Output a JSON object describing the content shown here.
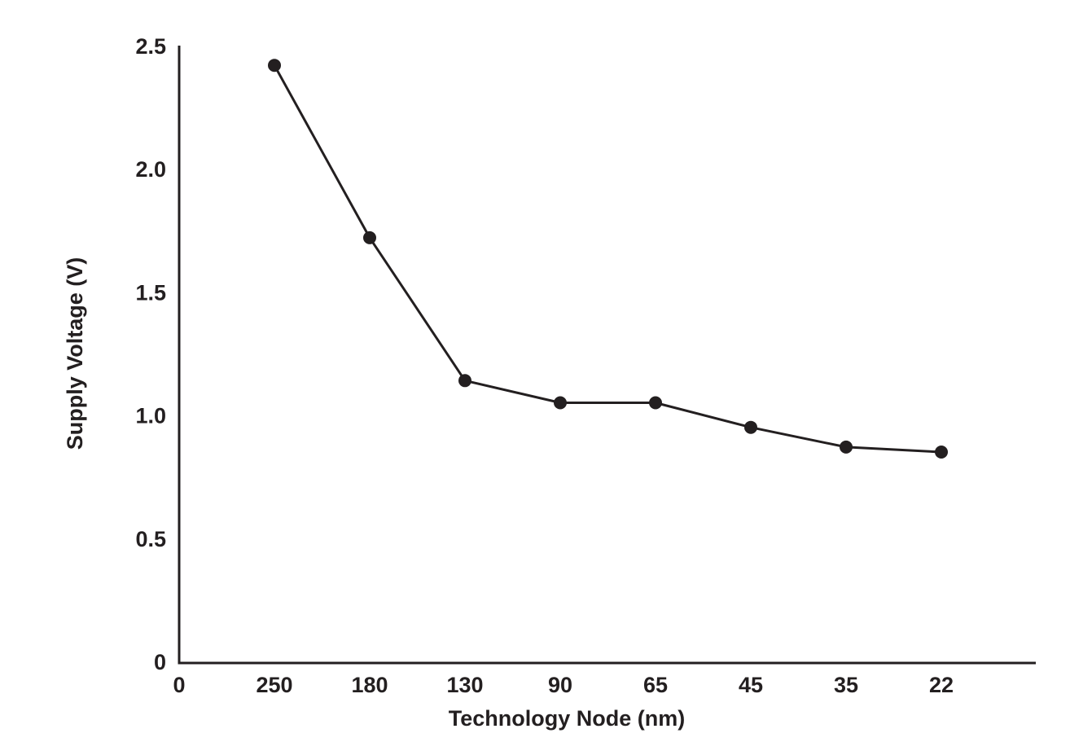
{
  "chart_data": {
    "type": "line",
    "title": "",
    "xlabel": "Technology Node (nm)",
    "ylabel": "Supply Voltage (V)",
    "x_tick_labels": [
      "0",
      "250",
      "180",
      "130",
      "90",
      "65",
      "45",
      "35",
      "22"
    ],
    "y_tick_labels": [
      "0",
      "0.5",
      "1.0",
      "1.5",
      "2.0",
      "2.5"
    ],
    "ylim": [
      0,
      2.5
    ],
    "grid": false,
    "legend": "none",
    "categories": [
      "250",
      "180",
      "130",
      "90",
      "65",
      "45",
      "35",
      "22"
    ],
    "series": [
      {
        "values": [
          2.42,
          1.72,
          1.14,
          1.05,
          1.05,
          0.95,
          0.87,
          0.85
        ]
      }
    ],
    "colors": {
      "line": "#231f20",
      "axis": "#231f20",
      "text": "#231f20"
    }
  }
}
